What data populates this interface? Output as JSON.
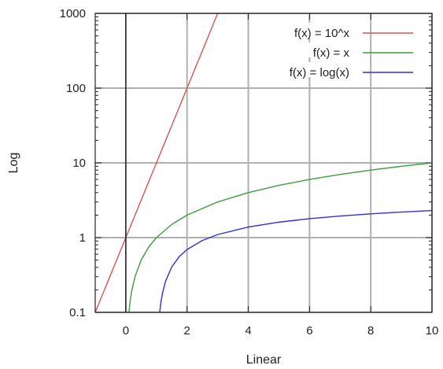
{
  "chart_data": {
    "type": "line",
    "xlabel": "Linear",
    "ylabel": "Log",
    "xlim": [
      -1,
      10
    ],
    "ylim": [
      0.1,
      1000
    ],
    "xscale": "linear",
    "yscale": "log",
    "xticks": [
      0,
      2,
      4,
      6,
      8,
      10
    ],
    "xtick_labels": [
      "0",
      "2",
      "4",
      "6",
      "8",
      "10"
    ],
    "yticks": [
      0.1,
      1,
      10,
      100,
      1000
    ],
    "ytick_labels": [
      "0.1",
      "1",
      "10",
      "100",
      "1000"
    ],
    "grid": true,
    "legend_position": "top-right",
    "series": [
      {
        "name": "f(x) = 10^x",
        "color": "#d9534f",
        "x": [
          -1,
          -0.5,
          0,
          0.5,
          1,
          1.5,
          2,
          2.5,
          3
        ],
        "y": [
          0.1,
          0.3162,
          1,
          3.162,
          10,
          31.62,
          100,
          316.2,
          1000
        ]
      },
      {
        "name": "f(x) = x",
        "color": "#3f9b3f",
        "x": [
          0.1,
          0.15,
          0.2,
          0.3,
          0.5,
          0.75,
          1,
          1.5,
          2,
          3,
          4,
          5,
          6,
          7,
          8,
          9,
          10
        ],
        "y": [
          0.1,
          0.15,
          0.2,
          0.3,
          0.5,
          0.75,
          1,
          1.5,
          2,
          3,
          4,
          5,
          6,
          7,
          8,
          9,
          10
        ]
      },
      {
        "name": "f(x) = log(x)",
        "color": "#2f2fe0",
        "x": [
          1.105,
          1.15,
          1.2,
          1.3,
          1.5,
          1.75,
          2,
          2.5,
          3,
          4,
          5,
          6,
          7,
          8,
          9,
          10
        ],
        "y": [
          0.1,
          0.1398,
          0.1823,
          0.2624,
          0.4055,
          0.5596,
          0.6931,
          0.9163,
          1.0986,
          1.3863,
          1.6094,
          1.7918,
          1.9459,
          2.0794,
          2.1972,
          2.3026
        ]
      }
    ]
  }
}
